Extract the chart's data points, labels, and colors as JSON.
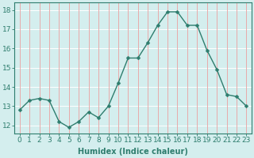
{
  "x": [
    0,
    1,
    2,
    3,
    4,
    5,
    6,
    7,
    8,
    9,
    10,
    11,
    12,
    13,
    14,
    15,
    16,
    17,
    18,
    19,
    20,
    21,
    22,
    23
  ],
  "y": [
    12.8,
    13.3,
    13.4,
    13.3,
    12.2,
    11.9,
    12.2,
    12.7,
    12.4,
    13.0,
    14.2,
    15.5,
    15.5,
    16.3,
    17.2,
    17.9,
    17.9,
    17.2,
    17.2,
    15.9,
    14.9,
    13.6,
    13.5,
    13.0
  ],
  "line_color": "#2e7d6e",
  "marker": "D",
  "marker_size": 2.5,
  "bg_color": "#d4eeee",
  "grid_h_color": "#ffffff",
  "grid_v_color": "#e8aaaa",
  "xlabel": "Humidex (Indice chaleur)",
  "xlabel_fontsize": 7,
  "ylabel_ticks": [
    12,
    13,
    14,
    15,
    16,
    17,
    18
  ],
  "xlim": [
    -0.5,
    23.5
  ],
  "ylim": [
    11.6,
    18.4
  ],
  "tick_fontsize": 6.5,
  "linewidth": 1.0
}
